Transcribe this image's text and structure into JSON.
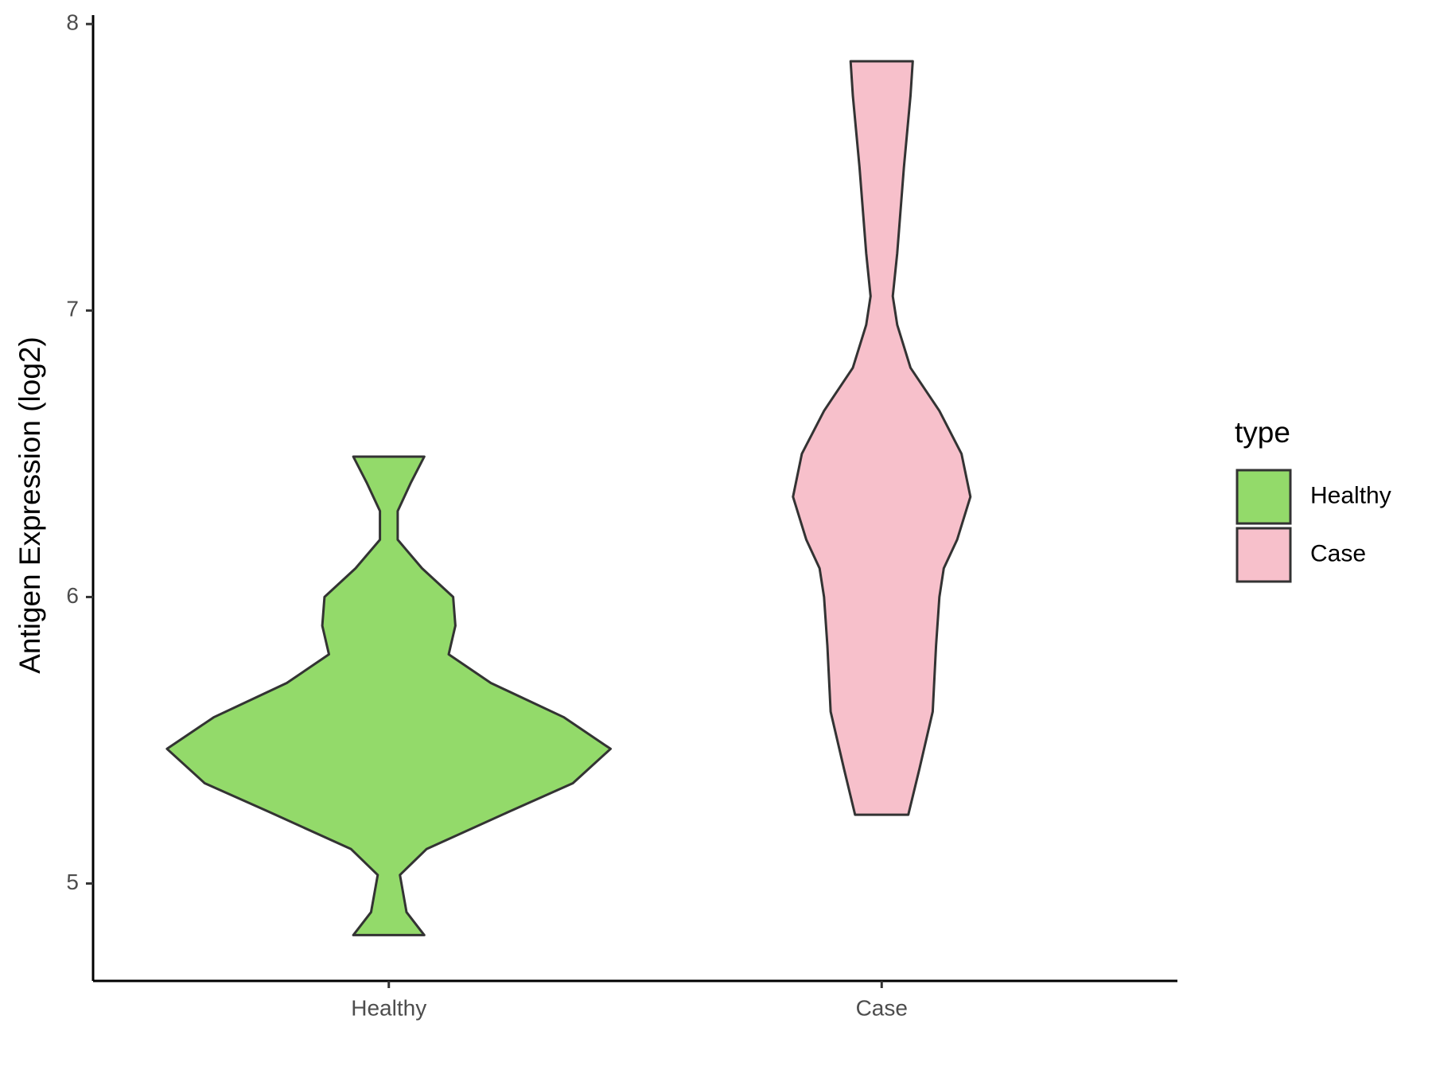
{
  "chart_data": {
    "type": "violin",
    "y_label": "Antigen Expression (log2)",
    "categories": [
      "Healthy",
      "Case"
    ],
    "legend_title": "type",
    "legend_position": "right",
    "series": [
      {
        "name": "Healthy",
        "color": "#93da6a",
        "y": [
          4.82,
          4.9,
          5.03,
          5.12,
          5.25,
          5.35,
          5.47,
          5.58,
          5.7,
          5.8,
          5.9,
          6.0,
          6.1,
          6.2,
          6.3,
          6.4,
          6.49
        ],
        "density": [
          0.16,
          0.08,
          0.05,
          0.17,
          0.54,
          0.83,
          1,
          0.79,
          0.46,
          0.27,
          0.3,
          0.29,
          0.15,
          0.04,
          0.04,
          0.1,
          0.16
        ]
      },
      {
        "name": "Case",
        "color": "#f7c0cb",
        "y": [
          5.24,
          5.4,
          5.6,
          5.83,
          6.0,
          6.1,
          6.2,
          6.35,
          6.5,
          6.65,
          6.8,
          6.95,
          7.05,
          7.2,
          7.5,
          7.75,
          7.87
        ],
        "density": [
          0.12,
          0.17,
          0.23,
          0.245,
          0.26,
          0.28,
          0.34,
          0.4,
          0.36,
          0.26,
          0.13,
          0.07,
          0.05,
          0.07,
          0.1,
          0.13,
          0.14
        ]
      }
    ],
    "ylim": [
      4.66,
      8.02
    ],
    "yticks": [
      5,
      6,
      7,
      8
    ],
    "grid": false
  }
}
